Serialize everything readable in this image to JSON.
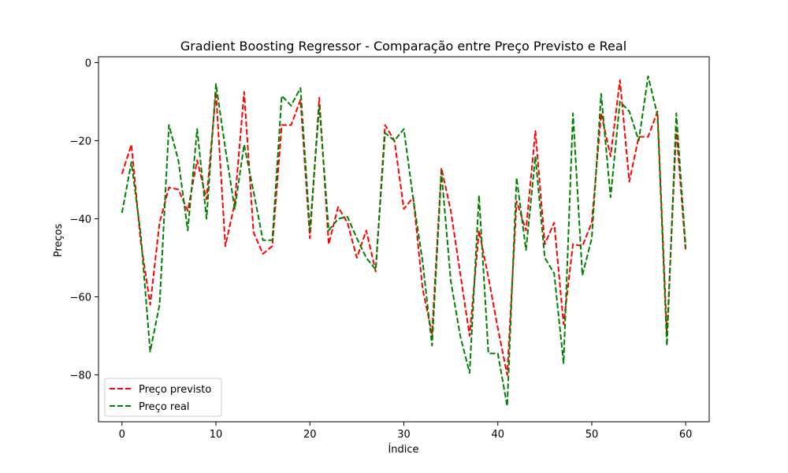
{
  "chart_data": {
    "type": "line",
    "title": "Gradient Boosting Regressor - Comparação entre Preço Previsto e Real",
    "xlabel": "Índice",
    "ylabel": "Preços",
    "xlim": [
      -2.5,
      62.5
    ],
    "ylim": [
      -92,
      1.5
    ],
    "xticks": [
      0,
      10,
      20,
      30,
      40,
      50,
      60
    ],
    "yticks": [
      0,
      -20,
      -40,
      -60,
      -80
    ],
    "xtick_labels": [
      "0",
      "10",
      "20",
      "30",
      "40",
      "50",
      "60"
    ],
    "ytick_labels": [
      "0",
      "−20",
      "−40",
      "−60",
      "−80"
    ],
    "grid": false,
    "legend_position": "lower-left",
    "series": [
      {
        "name": "Preço previsto",
        "color": "#ff0000",
        "line_style": "dashed",
        "values": [
          -28.5,
          -21,
          -46,
          -62,
          -41,
          -32,
          -32.5,
          -38,
          -25,
          -35,
          -7.5,
          -47,
          -36,
          -7.5,
          -43.5,
          -49,
          -47,
          -16,
          -16,
          -9.5,
          -45,
          -9,
          -46.5,
          -37,
          -41,
          -50,
          -43,
          -53.5,
          -16,
          -20,
          -37.5,
          -34.5,
          -58,
          -69.5,
          -27,
          -38,
          -54,
          -70,
          -43,
          -55,
          -68,
          -80,
          -35.5,
          -43,
          -17.5,
          -46.5,
          -41,
          -67,
          -46.5,
          -47,
          -41,
          -13,
          -24,
          -4.5,
          -30.5,
          -19,
          -19,
          -12.5,
          -70,
          -17,
          -48.5
        ]
      },
      {
        "name": "Preço real",
        "color": "#008000",
        "line_style": "dashed",
        "values": [
          -38.5,
          -25.5,
          -44,
          -74,
          -62,
          -16,
          -25,
          -43,
          -17,
          -40,
          -5.5,
          -22,
          -37.5,
          -21,
          -33,
          -45.5,
          -45.5,
          -8.5,
          -11,
          -6.5,
          -43,
          -11,
          -43,
          -40,
          -39.5,
          -45,
          -50,
          -53,
          -18,
          -20,
          -17,
          -35,
          -51,
          -72.5,
          -28,
          -56,
          -70,
          -79.5,
          -34,
          -74.5,
          -74.5,
          -88,
          -29.5,
          -48,
          -24,
          -50,
          -54,
          -77,
          -13,
          -54.5,
          -45,
          -8,
          -34.5,
          -10,
          -12.5,
          -20,
          -3.5,
          -13.5,
          -72.5,
          -13,
          -47.5
        ]
      }
    ]
  }
}
